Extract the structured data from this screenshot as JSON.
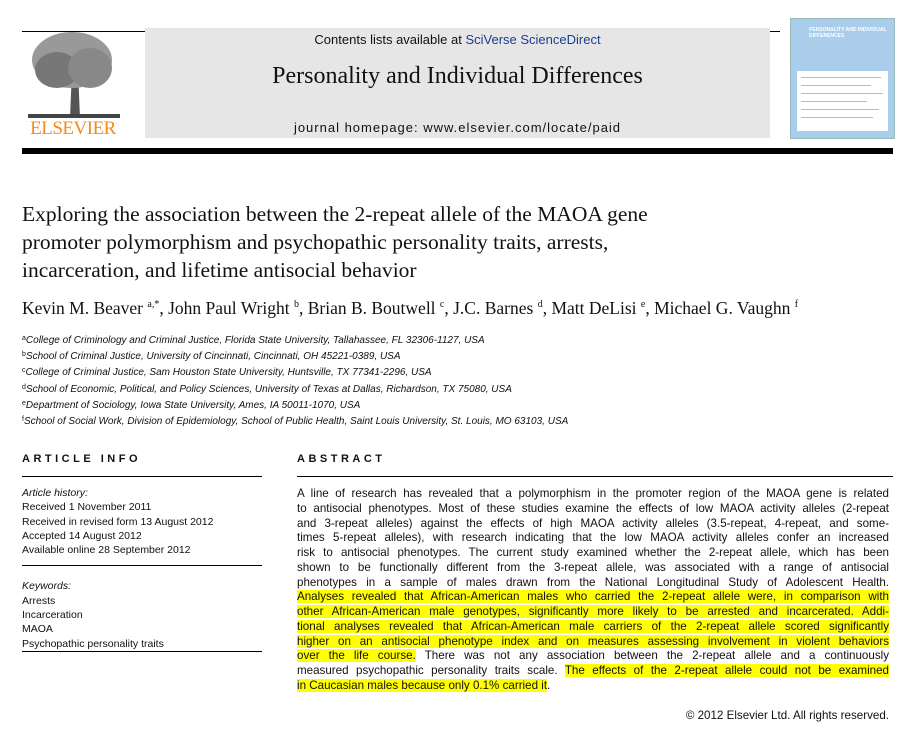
{
  "header": {
    "publisher_logo": "ELSEVIER",
    "contents_prefix": "Contents lists available at ",
    "contents_link": "SciVerse ScienceDirect",
    "journal_title": "Personality and Individual Differences",
    "homepage": "journal homepage: www.elsevier.com/locate/paid",
    "cover_title": "PERSONALITY AND INDIVIDUAL DIFFERENCES",
    "colors": {
      "logo": "#f08c1e",
      "link": "#1a3f8f",
      "banner": "#e6e6e6",
      "cover": "#a9cdea",
      "highlight": "#ffff00"
    }
  },
  "article": {
    "title_lines": [
      "Exploring the association between the 2-repeat allele of the MAOA gene",
      "promoter polymorphism and psychopathic personality traits, arrests,",
      "incarceration, and lifetime antisocial behavior"
    ],
    "authors": [
      {
        "name": "Kevin M. Beaver",
        "sup": "a,*"
      },
      {
        "name": "John Paul Wright",
        "sup": "b"
      },
      {
        "name": "Brian B. Boutwell",
        "sup": "c"
      },
      {
        "name": "J.C. Barnes",
        "sup": "d"
      },
      {
        "name": "Matt DeLisi",
        "sup": "e"
      },
      {
        "name": "Michael G. Vaughn",
        "sup": "f"
      }
    ],
    "affiliations": [
      {
        "sup": "a",
        "text": "College of Criminology and Criminal Justice, Florida State University, Tallahassee, FL 32306-1127, USA"
      },
      {
        "sup": "b",
        "text": "School of Criminal Justice, University of Cincinnati, Cincinnati, OH 45221-0389, USA"
      },
      {
        "sup": "c",
        "text": "College of Criminal Justice, Sam Houston State University, Huntsville, TX 77341-2296, USA"
      },
      {
        "sup": "d",
        "text": "School of Economic, Political, and Policy Sciences, University of Texas at Dallas, Richardson, TX 75080, USA"
      },
      {
        "sup": "e",
        "text": "Department of Sociology, Iowa State University, Ames, IA 50011-1070, USA"
      },
      {
        "sup": "f",
        "text": "School of Social Work, Division of Epidemiology, School of Public Health, Saint Louis University, St. Louis, MO 63103, USA"
      }
    ]
  },
  "article_info": {
    "heading": "ARTICLE INFO",
    "history_label": "Article history:",
    "history": [
      "Received 1 November 2011",
      "Received in revised form 13 August 2012",
      "Accepted 14 August 2012",
      "Available online 28 September 2012"
    ],
    "keywords_label": "Keywords:",
    "keywords": [
      "Arrests",
      "Incarceration",
      "MAOA",
      "Psychopathic personality traits"
    ]
  },
  "abstract": {
    "heading": "ABSTRACT",
    "lines": [
      [
        {
          "t": "A line of research has revealed that a polymorphism in the promoter region of the MAOA gene is related",
          "h": false
        }
      ],
      [
        {
          "t": "to antisocial phenotypes. Most of these studies examine the effects of low MAOA activity alleles (2-repeat",
          "h": false
        }
      ],
      [
        {
          "t": "and 3-repeat alleles) against the effects of high MAOA activity alleles (3.5-repeat, 4-repeat, and some-",
          "h": false
        }
      ],
      [
        {
          "t": "times 5-repeat alleles), with research indicating that the low MAOA activity alleles confer an increased",
          "h": false
        }
      ],
      [
        {
          "t": "risk to antisocial phenotypes. The current study examined whether the 2-repeat allele, which has been",
          "h": false
        }
      ],
      [
        {
          "t": "shown to be functionally different from the 3-repeat allele, was associated with a range of antisocial",
          "h": false
        }
      ],
      [
        {
          "t": "phenotypes in a sample of males drawn from the National Longitudinal Study of Adolescent Health.",
          "h": false
        }
      ],
      [
        {
          "t": "Analyses revealed that African-American males who carried the 2-repeat allele were, in comparison with",
          "h": true
        }
      ],
      [
        {
          "t": "other African-American male genotypes, significantly more likely to be arrested and incarcerated. Addi-",
          "h": true
        }
      ],
      [
        {
          "t": "tional analyses revealed that African-American male carriers of the 2-repeat allele scored significantly",
          "h": true
        }
      ],
      [
        {
          "t": "higher on an antisocial phenotype index and on measures assessing involvement in violent behaviors",
          "h": true
        }
      ],
      [
        {
          "t": "over the life course.",
          "h": true
        },
        {
          "t": " There was not any association between the 2-repeat allele and a continuously",
          "h": false
        }
      ],
      [
        {
          "t": "measured psychopathic personality traits scale. ",
          "h": false
        },
        {
          "t": "The effects of the 2-repeat allele could not be examined",
          "h": true
        }
      ],
      [
        {
          "t": "in Caucasian males because only 0.1% carried it",
          "h": true
        },
        {
          "t": ".",
          "h": false
        }
      ]
    ],
    "copyright": "© 2012 Elsevier Ltd. All rights reserved."
  }
}
